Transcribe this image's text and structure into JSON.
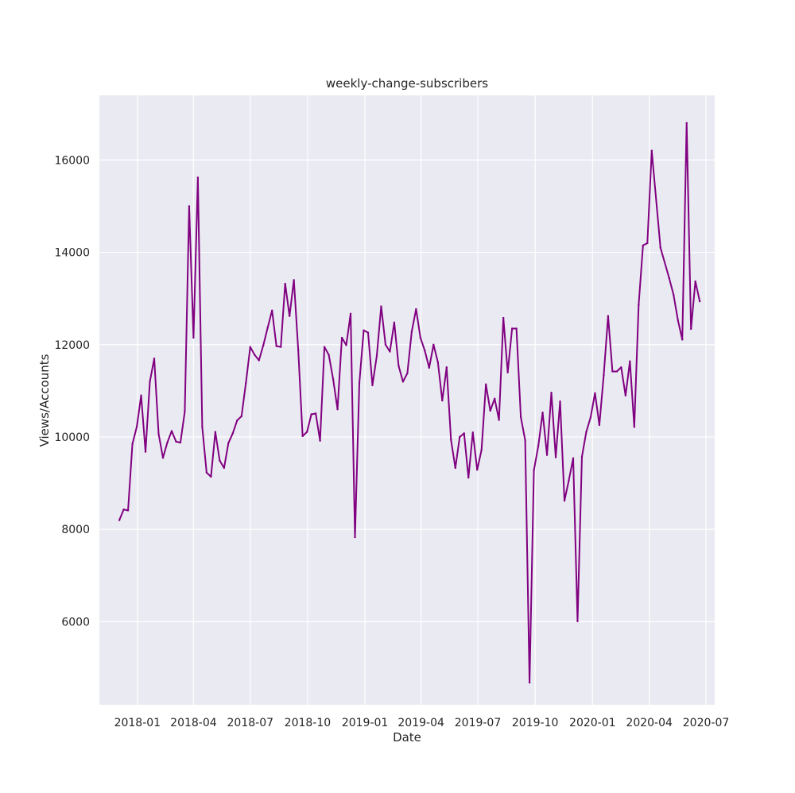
{
  "chart_data": {
    "type": "line",
    "title": "weekly-change-subscribers",
    "xlabel": "Date",
    "ylabel": "Views/Accounts",
    "grid": true,
    "xlim": [
      "2017-11-01",
      "2020-07-15"
    ],
    "ylim": [
      4200,
      17400
    ],
    "x_ticks": [
      "2018-01",
      "2018-04",
      "2018-07",
      "2018-10",
      "2019-01",
      "2019-04",
      "2019-07",
      "2019-10",
      "2020-01",
      "2020-04",
      "2020-07"
    ],
    "y_ticks": [
      6000,
      8000,
      10000,
      12000,
      14000,
      16000
    ],
    "colors": {
      "line": "#800080",
      "plot_bg": "#eaeaf2",
      "grid": "#ffffff"
    },
    "series": [
      {
        "x": [
          "2017-12-03",
          "2017-12-10",
          "2017-12-17",
          "2017-12-24",
          "2017-12-31",
          "2018-01-07",
          "2018-01-14",
          "2018-01-21",
          "2018-01-28",
          "2018-02-04",
          "2018-02-11",
          "2018-02-18",
          "2018-02-25",
          "2018-03-04",
          "2018-03-11",
          "2018-03-18",
          "2018-03-25",
          "2018-04-01",
          "2018-04-08",
          "2018-04-15",
          "2018-04-22",
          "2018-04-29",
          "2018-05-06",
          "2018-05-13",
          "2018-05-20",
          "2018-05-27",
          "2018-06-03",
          "2018-06-10",
          "2018-06-17",
          "2018-06-24",
          "2018-07-01",
          "2018-07-08",
          "2018-07-15",
          "2018-07-22",
          "2018-07-29",
          "2018-08-05",
          "2018-08-12",
          "2018-08-19",
          "2018-08-26",
          "2018-09-02",
          "2018-09-09",
          "2018-09-16",
          "2018-09-23",
          "2018-09-30",
          "2018-10-07",
          "2018-10-14",
          "2018-10-21",
          "2018-10-28",
          "2018-11-04",
          "2018-11-11",
          "2018-11-18",
          "2018-11-25",
          "2018-12-02",
          "2018-12-09",
          "2018-12-16",
          "2018-12-23",
          "2018-12-30",
          "2019-01-06",
          "2019-01-13",
          "2019-01-20",
          "2019-01-27",
          "2019-02-03",
          "2019-02-10",
          "2019-02-17",
          "2019-02-24",
          "2019-03-03",
          "2019-03-10",
          "2019-03-17",
          "2019-03-24",
          "2019-03-31",
          "2019-04-07",
          "2019-04-14",
          "2019-04-21",
          "2019-04-28",
          "2019-05-05",
          "2019-05-12",
          "2019-05-19",
          "2019-05-26",
          "2019-06-02",
          "2019-06-09",
          "2019-06-16",
          "2019-06-23",
          "2019-06-30",
          "2019-07-07",
          "2019-07-14",
          "2019-07-21",
          "2019-07-28",
          "2019-08-04",
          "2019-08-11",
          "2019-08-18",
          "2019-08-25",
          "2019-09-01",
          "2019-09-08",
          "2019-09-15",
          "2019-09-22",
          "2019-09-29",
          "2019-10-06",
          "2019-10-13",
          "2019-10-20",
          "2019-10-27",
          "2019-11-03",
          "2019-11-10",
          "2019-11-17",
          "2019-11-24",
          "2019-12-01",
          "2019-12-08",
          "2019-12-15",
          "2019-12-22",
          "2019-12-29",
          "2020-01-05",
          "2020-01-12",
          "2020-01-19",
          "2020-01-26",
          "2020-02-02",
          "2020-02-09",
          "2020-02-16",
          "2020-02-23",
          "2020-03-01",
          "2020-03-08",
          "2020-03-15",
          "2020-03-22",
          "2020-03-29",
          "2020-04-05",
          "2020-04-19",
          "2020-05-03",
          "2020-05-10",
          "2020-05-17",
          "2020-05-24",
          "2020-05-31",
          "2020-06-07",
          "2020-06-14",
          "2020-06-21"
        ],
        "values": [
          8200,
          8430,
          8410,
          9850,
          10220,
          10900,
          9680,
          11200,
          11700,
          10070,
          9550,
          9880,
          10130,
          9900,
          9880,
          10550,
          15000,
          12150,
          15620,
          10220,
          9230,
          9140,
          10110,
          9490,
          9330,
          9870,
          10080,
          10360,
          10450,
          11170,
          11950,
          11780,
          11660,
          11990,
          12370,
          12740,
          11970,
          11950,
          13320,
          12620,
          13400,
          11880,
          10020,
          10110,
          10490,
          10510,
          9920,
          11950,
          11780,
          11250,
          10600,
          12150,
          11990,
          12670,
          7830,
          11170,
          12310,
          12260,
          11120,
          11760,
          12830,
          12000,
          11850,
          12480,
          11540,
          11200,
          11380,
          12280,
          12770,
          12150,
          11870,
          11500,
          12000,
          11620,
          10790,
          11510,
          9940,
          9330,
          10000,
          10080,
          9120,
          10100,
          9290,
          9720,
          11140,
          10570,
          10830,
          10370,
          12580,
          11400,
          12350,
          12350,
          10430,
          9930,
          4680,
          9280,
          9800,
          10530,
          9610,
          10960,
          9560,
          10770,
          8620,
          9060,
          9540,
          6010,
          9570,
          10110,
          10430,
          10950,
          10260,
          11340,
          12620,
          11420,
          11420,
          11510,
          10900,
          11640,
          10220,
          12860,
          14150,
          14200,
          16200,
          14100,
          13440,
          13080,
          12530,
          12110,
          16800,
          12340,
          13370,
          12940
        ]
      }
    ]
  }
}
